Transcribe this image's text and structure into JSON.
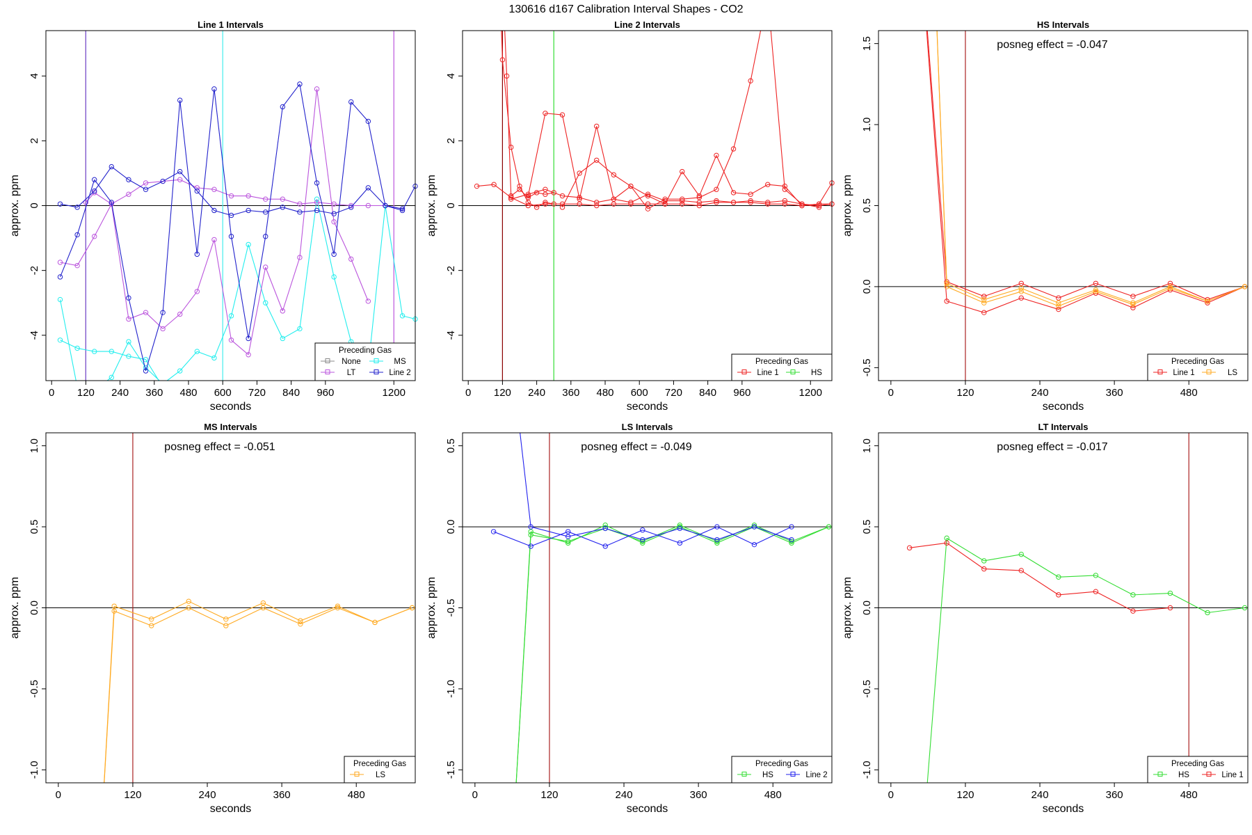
{
  "figure_title": "130616  d167   Calibration Interval Shapes - CO2",
  "chart_data": [
    {
      "type": "line",
      "title": "Line 1 Intervals",
      "xlabel": "seconds",
      "ylabel": "approx. ppm",
      "xlim": [
        -20,
        1275
      ],
      "ylim": [
        -5.4,
        5.4
      ],
      "xticks": [
        0,
        120,
        240,
        360,
        480,
        600,
        720,
        840,
        960,
        1200
      ],
      "yticks": [
        -4,
        -2,
        0,
        2,
        4
      ],
      "zero_line": true,
      "vlines": [
        {
          "x": 120,
          "color": "#8b0000"
        },
        {
          "x": 120,
          "color": "#7755dd"
        },
        {
          "x": 600,
          "color": "#44eeee"
        },
        {
          "x": 1200,
          "color": "#bb55dd"
        }
      ],
      "annotation": "",
      "legend": {
        "title": "Preceding Gas",
        "position": "bottom-right",
        "columns": 2,
        "entries": [
          "None",
          "MS",
          "LT",
          "Line 2"
        ]
      },
      "series": [
        {
          "name": "None",
          "color": "#888888",
          "x": [],
          "y": []
        },
        {
          "name": "MS",
          "color": "#22eeee",
          "x": [
            30,
            90,
            150,
            210,
            270,
            330,
            390,
            450,
            510,
            570,
            630,
            690,
            750,
            810,
            870,
            930,
            990,
            1050,
            1110,
            1170,
            1230,
            1275
          ],
          "y": [
            -2.9,
            -5.6,
            -5.7,
            -5.3,
            -4.2,
            -5.0,
            -5.5,
            -5.1,
            -4.5,
            -4.7,
            -3.4,
            -1.2,
            -3.0,
            -4.1,
            -3.8,
            0.2,
            -2.2,
            -4.2,
            -5.0,
            0.0,
            -3.4,
            -3.5
          ]
        },
        {
          "name": "MS",
          "color": "#22eeee",
          "x": [
            30,
            90,
            150,
            210,
            270,
            330,
            390,
            450
          ],
          "y": [
            -4.15,
            -4.4,
            -4.5,
            -4.5,
            -4.65,
            -4.75,
            -5.6,
            -5.6
          ]
        },
        {
          "name": "LT",
          "color": "#bb55dd",
          "x": [
            30,
            90,
            150,
            210,
            270,
            330,
            390,
            450,
            510,
            570,
            630,
            690,
            750,
            810,
            870,
            930,
            990,
            1050,
            1110
          ],
          "y": [
            -1.75,
            -1.85,
            -0.95,
            0.05,
            -3.5,
            -3.3,
            -3.8,
            -3.35,
            -2.65,
            -1.05,
            -4.15,
            -4.6,
            -1.9,
            -3.25,
            -1.6,
            3.6,
            -0.5,
            -1.65,
            -2.95
          ]
        },
        {
          "name": "LT",
          "color": "#bb55dd",
          "x": [
            120,
            150,
            210,
            270,
            330,
            390,
            450,
            510,
            570,
            630,
            690,
            750,
            810,
            870,
            930,
            990,
            1050,
            1110,
            1170,
            1230
          ],
          "y": [
            0.1,
            0.4,
            0.05,
            0.35,
            0.7,
            0.75,
            0.8,
            0.55,
            0.5,
            0.3,
            0.3,
            0.2,
            0.2,
            0.05,
            0.1,
            0.05,
            0.0,
            0.0,
            0.0,
            -0.1
          ]
        },
        {
          "name": "Line 2",
          "color": "#2222cc",
          "x": [
            30,
            90,
            150,
            210,
            270,
            330,
            390,
            450,
            510,
            570,
            630,
            690,
            750,
            810,
            870,
            930,
            990,
            1050,
            1110,
            1170,
            1230,
            1275
          ],
          "y": [
            -2.2,
            -0.9,
            0.8,
            0.1,
            -2.85,
            -5.1,
            -3.3,
            3.25,
            -1.5,
            3.6,
            -0.95,
            -4.1,
            -0.95,
            3.05,
            3.75,
            0.7,
            -1.5,
            3.2,
            2.6,
            0.0,
            -0.15,
            0.6
          ]
        },
        {
          "name": "Line 2",
          "color": "#2222cc",
          "x": [
            30,
            90,
            150,
            210,
            270,
            330,
            390,
            450,
            510,
            570,
            630,
            690,
            750,
            810,
            870,
            930,
            990,
            1050,
            1110,
            1170,
            1230
          ],
          "y": [
            0.05,
            -0.05,
            0.45,
            1.2,
            0.8,
            0.5,
            0.75,
            1.05,
            0.45,
            -0.15,
            -0.3,
            -0.15,
            -0.2,
            -0.05,
            -0.2,
            -0.15,
            -0.25,
            -0.05,
            0.55,
            0.0,
            -0.1
          ]
        }
      ]
    },
    {
      "type": "line",
      "title": "Line 2 Intervals",
      "xlabel": "seconds",
      "ylabel": "approx. ppm",
      "xlim": [
        -20,
        1275
      ],
      "ylim": [
        -5.4,
        5.4
      ],
      "xticks": [
        0,
        120,
        240,
        360,
        480,
        600,
        720,
        840,
        960,
        1200
      ],
      "yticks": [
        -4,
        -2,
        0,
        2,
        4
      ],
      "zero_line": true,
      "vlines": [
        {
          "x": 120,
          "color": "#8b0000"
        },
        {
          "x": 300,
          "color": "#33dd33"
        }
      ],
      "annotation": "",
      "legend": {
        "title": "Preceding Gas",
        "position": "bottom-right",
        "columns": 2,
        "entries": [
          "Line 1",
          "HS"
        ]
      },
      "series": [
        {
          "name": "Line 1",
          "color": "#ee2222",
          "x": [
            110,
            120,
            150,
            180,
            210,
            240,
            270,
            300
          ],
          "y": [
            7.0,
            4.5,
            1.8,
            0.6,
            0.1,
            -0.05,
            0.1,
            0.05
          ]
        },
        {
          "name": "Line 1",
          "color": "#ee2222",
          "x": [
            120,
            135,
            150,
            180,
            210,
            240,
            270,
            300
          ],
          "y": [
            7.0,
            4.0,
            0.3,
            0.5,
            0.25,
            0.4,
            0.35,
            0.4
          ]
        },
        {
          "name": "Line 1",
          "color": "#ee2222",
          "x": [
            30,
            90,
            150,
            210,
            270,
            330,
            390,
            450,
            510,
            570,
            630,
            690,
            750,
            810,
            870,
            930,
            990,
            1050,
            1110,
            1170,
            1230,
            1275
          ],
          "y": [
            0.6,
            0.65,
            0.25,
            0.0,
            0.05,
            0.05,
            0.05,
            0.0,
            0.05,
            0.05,
            0.05,
            0.05,
            0.05,
            0.0,
            0.1,
            0.1,
            0.1,
            0.05,
            0.05,
            0.0,
            0.05,
            0.05
          ]
        },
        {
          "name": "Line 1",
          "color": "#ee2222",
          "x": [
            150,
            210,
            270,
            330,
            390,
            450,
            510,
            570,
            630,
            690,
            750,
            810,
            870,
            930,
            990,
            1050,
            1110,
            1170,
            1230,
            1275
          ],
          "y": [
            0.2,
            0.35,
            0.5,
            0.3,
            0.25,
            0.1,
            0.2,
            0.1,
            0.35,
            0.15,
            0.15,
            0.1,
            0.15,
            0.1,
            0.15,
            0.1,
            0.15,
            0.05,
            0.0,
            0.05
          ]
        },
        {
          "name": "Line 1",
          "color": "#ee2222",
          "x": [
            210,
            270,
            330,
            390,
            450,
            510,
            570,
            630,
            690,
            750,
            810,
            870,
            930,
            990,
            1050,
            1110,
            1170,
            1230,
            1275
          ],
          "y": [
            0.3,
            2.85,
            2.8,
            0.2,
            2.45,
            0.2,
            0.6,
            0.3,
            0.05,
            1.05,
            0.3,
            1.55,
            0.4,
            0.35,
            0.65,
            0.6,
            0.0,
            0.05,
            0.7
          ]
        },
        {
          "name": "Line 1",
          "color": "#ee2222",
          "x": [
            330,
            390,
            450,
            510,
            570,
            630,
            690,
            750,
            810,
            870,
            930,
            990,
            1050,
            1110,
            1170,
            1230
          ],
          "y": [
            -0.05,
            1.0,
            1.4,
            0.95,
            0.6,
            -0.1,
            0.2,
            0.2,
            0.25,
            0.5,
            1.75,
            3.85,
            6.5,
            0.5,
            0.05,
            -0.05
          ]
        },
        {
          "name": "HS",
          "color": "#33dd33",
          "x": [],
          "y": []
        }
      ]
    },
    {
      "type": "line",
      "title": "HS Intervals",
      "xlabel": "seconds",
      "ylabel": "approx. ppm",
      "xlim": [
        -20,
        575
      ],
      "ylim": [
        -0.58,
        1.58
      ],
      "xticks": [
        0,
        120,
        240,
        360,
        480
      ],
      "yticks": [
        -0.5,
        0.0,
        0.5,
        1.0,
        1.5
      ],
      "zero_line": true,
      "vlines": [
        {
          "x": 120,
          "color": "#aa2222"
        }
      ],
      "annotation": "posneg effect = -0.047",
      "legend": {
        "title": "Preceding Gas",
        "position": "bottom-right",
        "columns": 2,
        "entries": [
          "Line 1",
          "LS"
        ]
      },
      "series": [
        {
          "name": "Line 1",
          "color": "#ee2222",
          "x": [
            30,
            90,
            150,
            210,
            270,
            330,
            390,
            450,
            510,
            570
          ],
          "y": [
            3.0,
            -0.09,
            -0.16,
            -0.07,
            -0.14,
            -0.04,
            -0.13,
            -0.02,
            -0.1,
            0.0
          ]
        },
        {
          "name": "Line 1",
          "color": "#ee2222",
          "x": [
            30,
            90,
            150,
            210,
            270,
            330,
            390,
            450,
            510,
            570
          ],
          "y": [
            3.0,
            0.03,
            -0.06,
            0.02,
            -0.07,
            0.02,
            -0.06,
            0.02,
            -0.08,
            0.0
          ]
        },
        {
          "name": "LS",
          "color": "#ffaa22",
          "x": [
            60,
            90,
            150,
            210,
            270,
            330,
            390,
            450,
            510,
            570
          ],
          "y": [
            3.0,
            0.0,
            -0.1,
            -0.03,
            -0.12,
            -0.03,
            -0.11,
            -0.01,
            -0.09,
            0.0
          ]
        },
        {
          "name": "LS",
          "color": "#ffaa22",
          "x": [
            60,
            90,
            150,
            210,
            270,
            330,
            390,
            450,
            510,
            570
          ],
          "y": [
            3.0,
            0.02,
            -0.08,
            -0.01,
            -0.1,
            -0.02,
            -0.1,
            0.0,
            -0.09,
            0.0
          ]
        }
      ]
    },
    {
      "type": "line",
      "title": "MS Intervals",
      "xlabel": "seconds",
      "ylabel": "approx. ppm",
      "xlim": [
        -20,
        575
      ],
      "ylim": [
        -1.08,
        1.08
      ],
      "xticks": [
        0,
        120,
        240,
        360,
        480
      ],
      "yticks": [
        -1.0,
        -0.5,
        0.0,
        0.5,
        1.0
      ],
      "zero_line": true,
      "vlines": [
        {
          "x": 120,
          "color": "#aa2222"
        }
      ],
      "annotation": "posneg effect = -0.051",
      "legend": {
        "title": "Preceding Gas",
        "position": "bottom-right",
        "columns": 1,
        "entries": [
          "LS"
        ]
      },
      "series": [
        {
          "name": "LS",
          "color": "#ffaa22",
          "x": [
            60,
            90,
            150,
            210,
            270,
            330,
            390,
            450,
            510,
            570
          ],
          "y": [
            -2.0,
            0.01,
            -0.07,
            0.04,
            -0.07,
            0.03,
            -0.08,
            0.01,
            -0.09,
            0.0
          ]
        },
        {
          "name": "LS",
          "color": "#ffaa22",
          "x": [
            60,
            90,
            150,
            210,
            270,
            330,
            390,
            450,
            510,
            570
          ],
          "y": [
            -2.0,
            -0.02,
            -0.11,
            0.0,
            -0.11,
            0.0,
            -0.1,
            0.0,
            -0.09,
            0.0
          ]
        }
      ]
    },
    {
      "type": "line",
      "title": "LS Intervals",
      "xlabel": "seconds",
      "ylabel": "approx. ppm",
      "xlim": [
        -20,
        575
      ],
      "ylim": [
        -1.58,
        0.58
      ],
      "xticks": [
        0,
        120,
        240,
        360,
        480
      ],
      "yticks": [
        -1.5,
        -1.0,
        -0.5,
        0.0,
        0.5
      ],
      "zero_line": true,
      "vlines": [
        {
          "x": 120,
          "color": "#aa2222"
        }
      ],
      "annotation": "posneg effect = -0.049",
      "legend": {
        "title": "Preceding Gas",
        "position": "bottom-right",
        "columns": 2,
        "entries": [
          "HS",
          "Line 2"
        ]
      },
      "series": [
        {
          "name": "HS",
          "color": "#33dd33",
          "x": [
            60,
            90,
            150,
            210,
            270,
            330,
            390,
            450,
            510,
            570
          ],
          "y": [
            -2.0,
            -0.03,
            -0.1,
            0.01,
            -0.1,
            0.0,
            -0.1,
            0.0,
            -0.1,
            0.0
          ]
        },
        {
          "name": "HS",
          "color": "#33dd33",
          "x": [
            60,
            90,
            150,
            210,
            270,
            330,
            390,
            450,
            510,
            570
          ],
          "y": [
            -2.0,
            -0.05,
            -0.09,
            -0.01,
            -0.09,
            0.01,
            -0.09,
            0.01,
            -0.09,
            0.0
          ]
        },
        {
          "name": "Line 2",
          "color": "#2222ee",
          "x": [
            30,
            90,
            150,
            210,
            270,
            330,
            390,
            450,
            510
          ],
          "y": [
            -0.03,
            -0.12,
            -0.03,
            -0.12,
            -0.02,
            -0.1,
            0.0,
            -0.11,
            0.0
          ]
        },
        {
          "name": "Line 2",
          "color": "#2222ee",
          "x": [
            60,
            90,
            150,
            210,
            270,
            330,
            390,
            450,
            510
          ],
          "y": [
            1.0,
            0.0,
            -0.06,
            -0.01,
            -0.08,
            -0.01,
            -0.08,
            0.0,
            -0.08
          ]
        }
      ]
    },
    {
      "type": "line",
      "title": "LT Intervals",
      "xlabel": "seconds",
      "ylabel": "approx. ppm",
      "xlim": [
        -20,
        575
      ],
      "ylim": [
        -1.08,
        1.08
      ],
      "xticks": [
        0,
        120,
        240,
        360,
        480
      ],
      "yticks": [
        -1.0,
        -0.5,
        0.0,
        0.5,
        1.0
      ],
      "zero_line": true,
      "vlines": [
        {
          "x": 480,
          "color": "#aa2222"
        }
      ],
      "annotation": "posneg effect = -0.017",
      "legend": {
        "title": "Preceding Gas",
        "position": "bottom-right",
        "columns": 2,
        "entries": [
          "HS",
          "Line 1"
        ]
      },
      "series": [
        {
          "name": "HS",
          "color": "#33dd33",
          "x": [
            50,
            90,
            150,
            210,
            270,
            330,
            390,
            450,
            510,
            570
          ],
          "y": [
            -1.5,
            0.43,
            0.29,
            0.33,
            0.19,
            0.2,
            0.08,
            0.09,
            -0.03,
            0.0
          ]
        },
        {
          "name": "Line 1",
          "color": "#ee2222",
          "x": [
            30,
            90,
            150,
            210,
            270,
            330,
            390,
            450
          ],
          "y": [
            0.37,
            0.4,
            0.24,
            0.23,
            0.08,
            0.1,
            -0.02,
            0.0
          ]
        }
      ]
    }
  ]
}
